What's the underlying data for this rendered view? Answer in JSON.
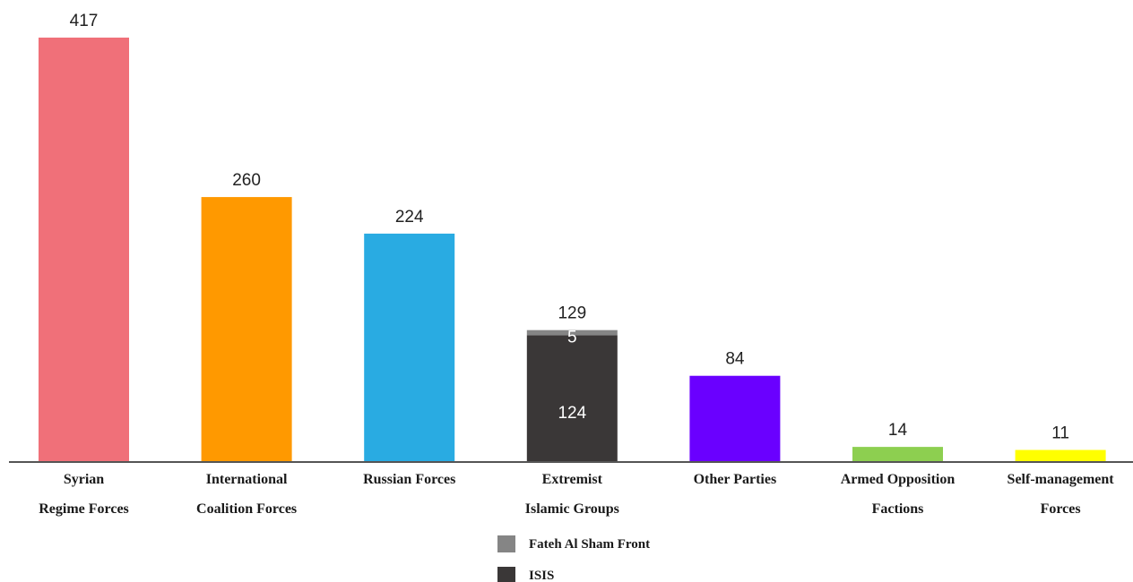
{
  "chart_data": {
    "type": "bar",
    "stacked_category": "Extremist Islamic Groups",
    "categories": [
      {
        "id": "syrian-regime-forces",
        "lines": [
          "Syrian",
          "Regime Forces"
        ],
        "value": 417,
        "color": "#f07079"
      },
      {
        "id": "international-coalition-forces",
        "lines": [
          "International",
          "Coalition Forces"
        ],
        "value": 260,
        "color": "#ff9900"
      },
      {
        "id": "russian-forces",
        "lines": [
          "Russian Forces"
        ],
        "value": 224,
        "color": "#29abe2"
      },
      {
        "id": "extremist-islamic-groups",
        "lines": [
          "Extremist",
          "Islamic Groups"
        ],
        "value": 129,
        "color": "#3a3737",
        "stack": [
          {
            "name": "ISIS",
            "value": 124,
            "color": "#3a3737"
          },
          {
            "name": "Fateh Al Sham Front",
            "value": 5,
            "color": "#858585"
          }
        ]
      },
      {
        "id": "other-parties",
        "lines": [
          "Other Parties"
        ],
        "value": 84,
        "color": "#6a00ff"
      },
      {
        "id": "armed-opposition-factions",
        "lines": [
          "Armed Opposition",
          "Factions"
        ],
        "value": 14,
        "color": "#8dcf50"
      },
      {
        "id": "self-management-forces",
        "lines": [
          "Self-management",
          "Forces"
        ],
        "value": 11,
        "color": "#ffff00"
      }
    ],
    "legend": [
      {
        "name": "Fateh Al Sham Front",
        "color": "#858585"
      },
      {
        "name": "ISIS",
        "color": "#3a3737"
      }
    ],
    "legend_position": "bottom-center",
    "ylim": [
      0,
      417
    ],
    "grid": false
  }
}
